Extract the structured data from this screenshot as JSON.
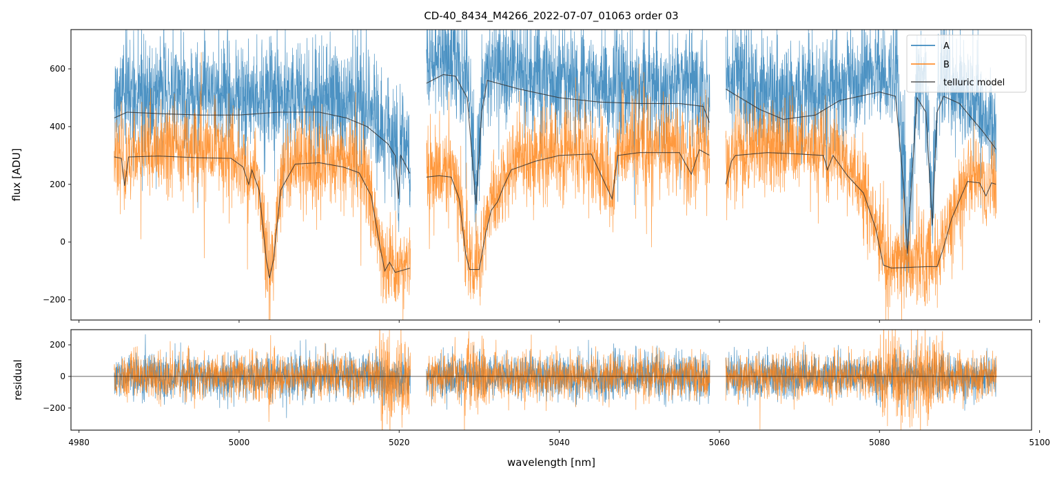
{
  "chart_data": {
    "type": "line",
    "title": "CD-40_8434_M4266_2022-07-07_01063  order 03",
    "xlabel": "wavelength [nm]",
    "xlim": [
      4979,
      5099
    ],
    "xticks": [
      4980,
      5000,
      5020,
      5040,
      5060,
      5080,
      5100
    ],
    "panels": [
      {
        "ylabel": "flux [ADU]",
        "ylim": [
          -270,
          736
        ],
        "yticks": [
          -200,
          0,
          200,
          400,
          600
        ],
        "legend": {
          "placement": "top-right",
          "entries": [
            "A",
            "B",
            "telluric model"
          ]
        }
      },
      {
        "ylabel": "residual",
        "ylim": [
          -340,
          296
        ],
        "yticks": [
          -200,
          0,
          200
        ],
        "zero_line": true
      }
    ],
    "colors": {
      "A": "#1f77b4",
      "B": "#ff7f0e",
      "model": "#333333"
    },
    "segments": [
      [
        4984.4,
        5021.4
      ],
      [
        5023.4,
        5058.8
      ],
      [
        5060.8,
        5094.6
      ]
    ],
    "noise_sigma": {
      "A": 95,
      "B": 75,
      "residual": 70
    },
    "data_offset": {
      "A": 60,
      "B": 20
    },
    "series": [
      {
        "name": "telluric model (A)",
        "segments": [
          [
            [
              4984.4,
              430
            ],
            [
              4986,
              450
            ],
            [
              4990,
              445
            ],
            [
              4995,
              440
            ],
            [
              5000,
              440
            ],
            [
              5005,
              450
            ],
            [
              5010,
              450
            ],
            [
              5013.4,
              430
            ],
            [
              5016,
              400
            ],
            [
              5018.6,
              340
            ],
            [
              5019.5,
              300
            ],
            [
              5019.9,
              150
            ],
            [
              5020.2,
              300
            ],
            [
              5021.4,
              235
            ]
          ],
          [
            [
              5023.4,
              550
            ],
            [
              5025.5,
              580
            ],
            [
              5027,
              575
            ],
            [
              5028.5,
              500
            ],
            [
              5029.6,
              130
            ],
            [
              5030.3,
              450
            ],
            [
              5031,
              560
            ],
            [
              5035,
              530
            ],
            [
              5040,
              500
            ],
            [
              5045,
              485
            ],
            [
              5050,
              480
            ],
            [
              5055,
              480
            ],
            [
              5058,
              470
            ],
            [
              5058.8,
              410
            ]
          ],
          [
            [
              5060.8,
              530
            ],
            [
              5065,
              460
            ],
            [
              5068,
              425
            ],
            [
              5072,
              440
            ],
            [
              5075,
              490
            ],
            [
              5080,
              520
            ],
            [
              5082,
              505
            ],
            [
              5083,
              200
            ],
            [
              5083.5,
              -40
            ],
            [
              5084,
              200
            ],
            [
              5084.7,
              500
            ],
            [
              5085.8,
              450
            ],
            [
              5086.6,
              60
            ],
            [
              5087.2,
              450
            ],
            [
              5088,
              505
            ],
            [
              5090,
              480
            ],
            [
              5093,
              380
            ],
            [
              5094.6,
              320
            ]
          ]
        ]
      },
      {
        "name": "telluric model (B)",
        "segments": [
          [
            [
              4984.4,
              295
            ],
            [
              4985.3,
              290
            ],
            [
              4985.7,
              195
            ],
            [
              4986.2,
              295
            ],
            [
              4990,
              298
            ],
            [
              4995,
              292
            ],
            [
              4999,
              290
            ],
            [
              5000.5,
              260
            ],
            [
              5001.2,
              200
            ],
            [
              5001.6,
              250
            ],
            [
              5002.5,
              180
            ],
            [
              5003.4,
              -60
            ],
            [
              5003.8,
              -125
            ],
            [
              5004.3,
              -60
            ],
            [
              5005.2,
              180
            ],
            [
              5007,
              270
            ],
            [
              5010,
              275
            ],
            [
              5013,
              260
            ],
            [
              5015,
              240
            ],
            [
              5016.5,
              160
            ],
            [
              5017.5,
              0
            ],
            [
              5018.2,
              -100
            ],
            [
              5018.8,
              -70
            ],
            [
              5019.5,
              -105
            ],
            [
              5021.4,
              -90
            ]
          ],
          [
            [
              5023.4,
              225
            ],
            [
              5025,
              230
            ],
            [
              5026.5,
              225
            ],
            [
              5027.5,
              150
            ],
            [
              5028.3,
              -40
            ],
            [
              5028.8,
              -95
            ],
            [
              5030,
              -95
            ],
            [
              5030.8,
              30
            ],
            [
              5031.5,
              110
            ],
            [
              5032.3,
              140
            ],
            [
              5033,
              190
            ],
            [
              5034,
              250
            ],
            [
              5037,
              280
            ],
            [
              5040,
              300
            ],
            [
              5044,
              305
            ],
            [
              5046.6,
              150
            ],
            [
              5047.3,
              300
            ],
            [
              5050,
              310
            ],
            [
              5055,
              310
            ],
            [
              5056.5,
              235
            ],
            [
              5057.5,
              320
            ],
            [
              5058.8,
              300
            ]
          ],
          [
            [
              5060.8,
              200
            ],
            [
              5061.5,
              280
            ],
            [
              5062,
              300
            ],
            [
              5066,
              310
            ],
            [
              5070,
              305
            ],
            [
              5073,
              300
            ],
            [
              5073.5,
              250
            ],
            [
              5074.2,
              300
            ],
            [
              5076,
              230
            ],
            [
              5078,
              170
            ],
            [
              5079.5,
              50
            ],
            [
              5080.5,
              -80
            ],
            [
              5081.5,
              -90
            ],
            [
              5086,
              -85
            ],
            [
              5087.2,
              -85
            ],
            [
              5088,
              -20
            ],
            [
              5089,
              80
            ],
            [
              5091,
              210
            ],
            [
              5092.5,
              205
            ],
            [
              5093.3,
              160
            ],
            [
              5094,
              205
            ],
            [
              5094.6,
              200
            ]
          ]
        ]
      }
    ]
  }
}
